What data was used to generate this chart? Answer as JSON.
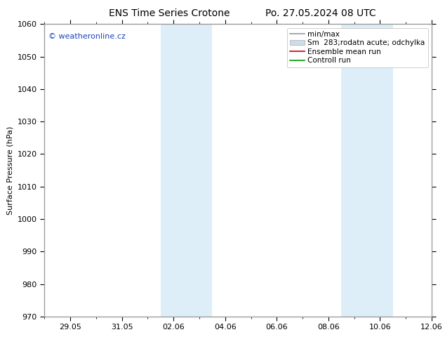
{
  "title_left": "ENS Time Series Crotone",
  "title_right": "Po. 27.05.2024 08 UTC",
  "ylabel": "Surface Pressure (hPa)",
  "ylim": [
    970,
    1060
  ],
  "yticks": [
    970,
    980,
    990,
    1000,
    1010,
    1020,
    1030,
    1040,
    1050,
    1060
  ],
  "xlim": [
    0,
    15
  ],
  "xtick_labels": [
    "29.05",
    "31.05",
    "02.06",
    "04.06",
    "06.06",
    "08.06",
    "10.06",
    "12.06"
  ],
  "xtick_positions": [
    1,
    3,
    5,
    7,
    9,
    11,
    13,
    15
  ],
  "weekend_bands": [
    {
      "start": 4.5,
      "end": 6.5
    },
    {
      "start": 11.5,
      "end": 13.5
    }
  ],
  "weekend_color": "#ddeef8",
  "background_color": "#ffffff",
  "plot_bg_color": "#ffffff",
  "border_color": "#999999",
  "watermark": "© weatheronline.cz",
  "watermark_color": "#1a44bb",
  "legend_labels": [
    "min/max",
    "Sm  283;rodatn acute; odchylka",
    "Ensemble mean run",
    "Controll run"
  ],
  "legend_colors": [
    "#999999",
    "#ccdde8",
    "#cc0000",
    "#009900"
  ],
  "title_fontsize": 10,
  "tick_fontsize": 8,
  "ylabel_fontsize": 8,
  "legend_fontsize": 7.5
}
